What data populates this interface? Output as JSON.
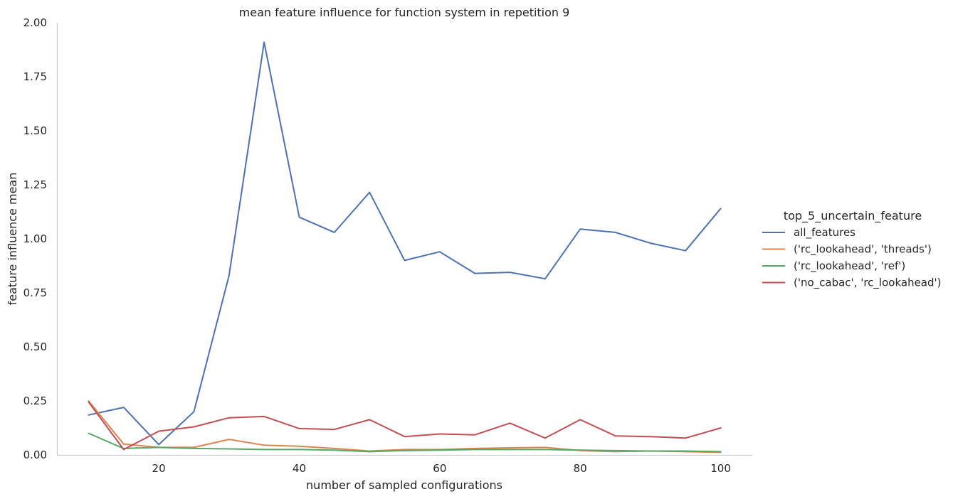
{
  "chart_data": {
    "type": "line",
    "title": "mean feature influence for function system in repetition 9",
    "xlabel": "number of sampled configurations",
    "ylabel": "feature influence mean",
    "xlim": [
      5.5,
      104.5
    ],
    "ylim": [
      0,
      2.0
    ],
    "xticks": [
      20,
      40,
      60,
      80,
      100
    ],
    "yticks": [
      0.0,
      0.25,
      0.5,
      0.75,
      1.0,
      1.25,
      1.5,
      1.75,
      2.0
    ],
    "ytick_labels": [
      "0.00",
      "0.25",
      "0.50",
      "0.75",
      "1.00",
      "1.25",
      "1.50",
      "1.75",
      "2.00"
    ],
    "grid": false,
    "legend_title": "top_5_uncertain_feature",
    "legend_position": "right",
    "x": [
      10,
      15,
      20,
      25,
      30,
      35,
      40,
      45,
      50,
      55,
      60,
      65,
      70,
      75,
      80,
      85,
      90,
      95,
      100
    ],
    "series": [
      {
        "name": "all_features",
        "color": "#4c72b0",
        "values": [
          0.185,
          0.22,
          0.048,
          0.2,
          0.83,
          1.91,
          1.1,
          1.03,
          1.215,
          0.9,
          0.94,
          0.84,
          0.845,
          0.815,
          1.045,
          1.03,
          0.98,
          0.945,
          1.14
        ]
      },
      {
        "name": "('rc_lookahead', 'threads')",
        "color": "#dd8452",
        "values": [
          0.25,
          0.05,
          0.035,
          0.035,
          0.072,
          0.045,
          0.04,
          0.03,
          0.018,
          0.025,
          0.025,
          0.03,
          0.033,
          0.035,
          0.02,
          0.015,
          0.018,
          0.015,
          0.012
        ]
      },
      {
        "name": "('rc_lookahead', 'ref')",
        "color": "#55a868",
        "values": [
          0.1,
          0.03,
          0.035,
          0.03,
          0.028,
          0.025,
          0.025,
          0.022,
          0.015,
          0.02,
          0.022,
          0.025,
          0.025,
          0.025,
          0.022,
          0.02,
          0.018,
          0.018,
          0.015
        ]
      },
      {
        "name": "('no_cabac', 'rc_lookahead')",
        "color": "#c44e52",
        "values": [
          0.245,
          0.025,
          0.11,
          0.13,
          0.172,
          0.178,
          0.122,
          0.118,
          0.163,
          0.085,
          0.097,
          0.093,
          0.147,
          0.078,
          0.163,
          0.088,
          0.085,
          0.078,
          0.125
        ]
      }
    ]
  }
}
